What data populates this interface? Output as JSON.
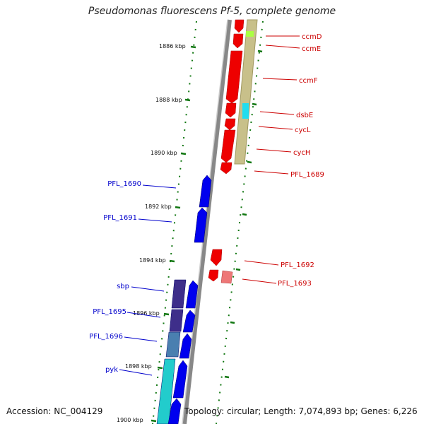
{
  "title": "Pseudomonas fluorescens Pf-5, complete genome",
  "accession": "Accession: NC_004129",
  "topology": "Topology: circular; Length: 7,074,893 bp; Genes: 6,226",
  "colors": {
    "forward_gene": "#0000ee",
    "reverse_gene": "#ee0000",
    "forward_label": "#0000cc",
    "reverse_label": "#cc0000",
    "backbone": "#888888",
    "tick_dots": "#117711",
    "operon_band": "#c8c08a"
  },
  "kbp_ticks": [
    "1886 kbp",
    "1888 kbp",
    "1890 kbp",
    "1892 kbp",
    "1894 kbp",
    "1896 kbp",
    "1898 kbp",
    "1900 kbp"
  ],
  "reverse_genes": [
    "ccmD",
    "ccmE",
    "ccmF",
    "dsbE",
    "cycL",
    "cycH",
    "PFL_1689",
    "PFL_1692",
    "PFL_1693"
  ],
  "forward_genes": [
    "PFL_1690",
    "PFL_1691",
    "sbp",
    "PFL_1695",
    "PFL_1696",
    "pyk"
  ]
}
